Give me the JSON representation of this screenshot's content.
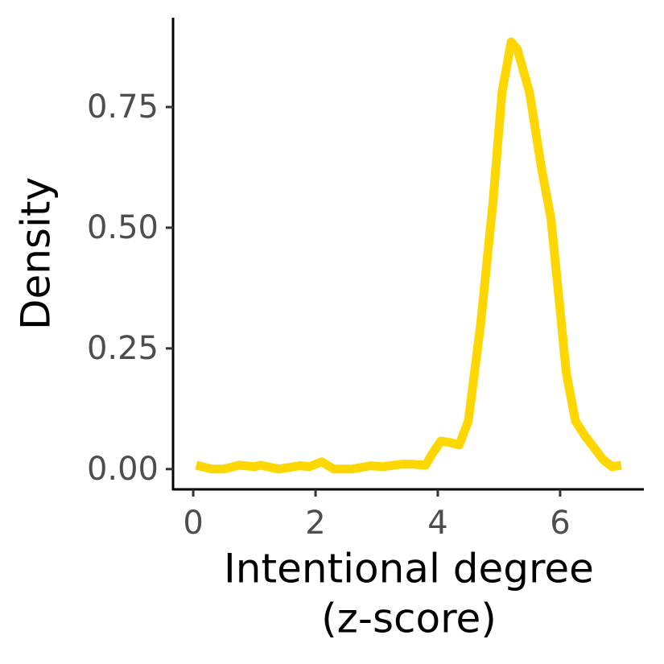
{
  "chart_data": {
    "type": "line",
    "x_label": [
      "Intentional degree",
      "(z-score)"
    ],
    "y_label": "Density",
    "x": [
      0.05,
      0.3,
      0.5,
      0.75,
      1.0,
      1.1,
      1.4,
      1.75,
      1.9,
      2.1,
      2.3,
      2.6,
      2.9,
      3.1,
      3.4,
      3.6,
      3.8,
      3.9,
      4.05,
      4.2,
      4.35,
      4.5,
      4.7,
      4.9,
      5.05,
      5.2,
      5.3,
      5.5,
      5.7,
      5.85,
      6.0,
      6.1,
      6.25,
      6.4,
      6.55,
      6.7,
      6.85,
      7.0
    ],
    "series": [
      {
        "color": "#ffd700",
        "values": [
          0.008,
          0.0,
          0.0,
          0.008,
          0.005,
          0.008,
          0.0,
          0.007,
          0.005,
          0.015,
          0.0,
          0.0,
          0.007,
          0.005,
          0.01,
          0.01,
          0.008,
          0.03,
          0.058,
          0.055,
          0.05,
          0.1,
          0.3,
          0.55,
          0.78,
          0.885,
          0.87,
          0.78,
          0.62,
          0.52,
          0.33,
          0.2,
          0.1,
          0.07,
          0.045,
          0.02,
          0.005,
          0.008
        ]
      }
    ],
    "xlim": [
      -0.33,
      7.37
    ],
    "ylim": [
      -0.042,
      0.935
    ],
    "xticks": [
      0,
      2,
      4,
      6
    ],
    "yticks": [
      {
        "value": 0,
        "label": "0.00"
      },
      0.25,
      {
        "value": 0.5,
        "label": "0.50"
      },
      0.75
    ]
  }
}
